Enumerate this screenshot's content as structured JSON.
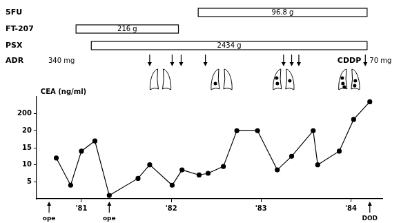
{
  "chart_data": {
    "type": "line",
    "y_label": "CEA (ng/ml)",
    "x": [
      1981.22,
      1981.38,
      1981.5,
      1981.65,
      1981.81,
      1982.13,
      1982.26,
      1982.51,
      1982.62,
      1982.81,
      1982.91,
      1983.08,
      1983.23,
      1983.46,
      1983.68,
      1983.84,
      1984.08,
      1984.13,
      1984.37,
      1984.53,
      1984.71
    ],
    "values": [
      12,
      4,
      14,
      17,
      1,
      6,
      10,
      4,
      8.5,
      7,
      7.5,
      9.5,
      20,
      20,
      8.5,
      12.5,
      20,
      10,
      14,
      140,
      270
    ],
    "color": "#000000",
    "marker": "circle",
    "line_style": "solid",
    "grid": false,
    "xlim": [
      1981.0,
      1984.85
    ],
    "xticks": [
      {
        "value": 1981.5,
        "label": "'81"
      },
      {
        "value": 1982.5,
        "label": "'82"
      },
      {
        "value": 1983.5,
        "label": "'83"
      },
      {
        "value": 1984.5,
        "label": "'84"
      }
    ],
    "ylim": [
      0,
      300
    ],
    "yticks": [
      5,
      10,
      15,
      20,
      200
    ],
    "treatments": [
      {
        "name": "5FU",
        "start": 1982.8,
        "end": 1984.68,
        "dose": "96.8 g"
      },
      {
        "name": "FT-207",
        "start": 1981.44,
        "end": 1982.58,
        "dose": "216 g"
      },
      {
        "name": "PSX",
        "start": 1981.61,
        "end": 1984.68,
        "dose": "2434 g"
      }
    ],
    "injections": [
      {
        "name": "ADR",
        "dose": "340 mg",
        "times": [
          1982.26,
          1982.51,
          1982.61,
          1982.88,
          1983.75,
          1983.84,
          1983.92
        ]
      },
      {
        "name": "CDDP",
        "dose": "70 mg",
        "times": [
          1984.66
        ]
      }
    ],
    "lung_images": [
      {
        "x": 1982.38,
        "nodules": 0
      },
      {
        "x": 1983.06,
        "nodules": 1
      },
      {
        "x": 1983.75,
        "nodules": 3
      },
      {
        "x": 1984.48,
        "nodules": 5
      }
    ],
    "annotations": [
      {
        "x": 1981.14,
        "label": "ope"
      },
      {
        "x": 1981.81,
        "label": "ope"
      },
      {
        "x": 1984.71,
        "label": "DOD"
      }
    ]
  }
}
